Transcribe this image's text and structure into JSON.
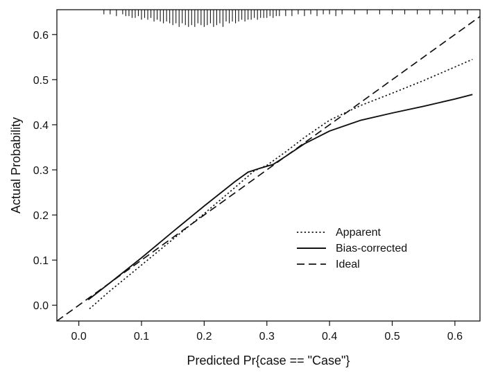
{
  "chart_data": {
    "type": "line",
    "title": "",
    "xlabel": "Predicted Pr{case == \"Case\"}",
    "ylabel": "Actual Probability",
    "xlim": [
      -0.035,
      0.64
    ],
    "ylim": [
      -0.035,
      0.655
    ],
    "x_ticks": [
      0.0,
      0.1,
      0.2,
      0.3,
      0.4,
      0.5,
      0.6
    ],
    "x_tick_labels": [
      "0.0",
      "0.1",
      "0.2",
      "0.3",
      "0.4",
      "0.5",
      "0.6"
    ],
    "y_ticks": [
      0.0,
      0.1,
      0.2,
      0.3,
      0.4,
      0.5,
      0.6
    ],
    "y_tick_labels": [
      "0.0",
      "0.1",
      "0.2",
      "0.3",
      "0.4",
      "0.5",
      "0.6"
    ],
    "grid": false,
    "legend_position": "bottom-right",
    "series": [
      {
        "name": "Apparent",
        "line_style": "dotted",
        "x": [
          0.017,
          0.05,
          0.1,
          0.15,
          0.2,
          0.25,
          0.28,
          0.3,
          0.33,
          0.36,
          0.4,
          0.45,
          0.5,
          0.55,
          0.6,
          0.628
        ],
        "y": [
          -0.008,
          0.032,
          0.089,
          0.146,
          0.203,
          0.262,
          0.298,
          0.31,
          0.34,
          0.372,
          0.41,
          0.443,
          0.47,
          0.498,
          0.528,
          0.545
        ]
      },
      {
        "name": "Bias-corrected",
        "line_style": "solid",
        "x": [
          0.015,
          0.05,
          0.1,
          0.15,
          0.2,
          0.25,
          0.27,
          0.29,
          0.31,
          0.33,
          0.36,
          0.4,
          0.45,
          0.5,
          0.55,
          0.6,
          0.628
        ],
        "y": [
          0.012,
          0.05,
          0.105,
          0.163,
          0.22,
          0.275,
          0.295,
          0.304,
          0.312,
          0.33,
          0.358,
          0.386,
          0.41,
          0.426,
          0.441,
          0.457,
          0.467
        ]
      },
      {
        "name": "Ideal",
        "line_style": "dashed",
        "x": [
          -0.035,
          0.64
        ],
        "y": [
          -0.035,
          0.64
        ]
      }
    ],
    "rug": {
      "position": "top",
      "x": [
        0.04,
        0.05,
        0.06,
        0.07,
        0.075,
        0.08,
        0.085,
        0.09,
        0.095,
        0.1,
        0.105,
        0.11,
        0.115,
        0.12,
        0.125,
        0.13,
        0.135,
        0.14,
        0.145,
        0.15,
        0.155,
        0.16,
        0.165,
        0.17,
        0.175,
        0.18,
        0.185,
        0.19,
        0.195,
        0.2,
        0.205,
        0.21,
        0.215,
        0.22,
        0.225,
        0.23,
        0.235,
        0.24,
        0.245,
        0.25,
        0.255,
        0.26,
        0.265,
        0.27,
        0.275,
        0.28,
        0.285,
        0.29,
        0.295,
        0.3,
        0.305,
        0.31,
        0.315,
        0.32,
        0.33,
        0.34,
        0.35,
        0.36,
        0.37,
        0.38,
        0.39,
        0.4,
        0.41,
        0.42,
        0.44,
        0.46,
        0.48,
        0.5,
        0.52,
        0.54,
        0.56,
        0.58,
        0.6,
        0.62
      ],
      "counts": [
        1,
        1,
        2,
        1,
        2,
        2,
        3,
        3,
        2,
        4,
        3,
        4,
        3,
        5,
        4,
        5,
        6,
        5,
        6,
        7,
        6,
        8,
        6,
        7,
        8,
        7,
        8,
        6,
        7,
        8,
        7,
        6,
        8,
        7,
        6,
        8,
        5,
        6,
        5,
        6,
        5,
        4,
        5,
        4,
        4,
        3,
        4,
        3,
        3,
        3,
        2,
        3,
        2,
        2,
        2,
        2,
        1,
        2,
        1,
        2,
        1,
        1,
        2,
        1,
        1,
        1,
        1,
        1,
        1,
        1,
        1,
        1,
        1,
        1
      ]
    }
  }
}
